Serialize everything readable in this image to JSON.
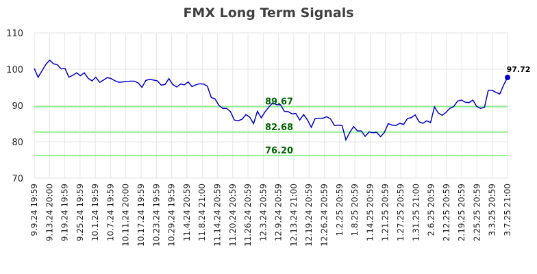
{
  "chart_data": {
    "type": "line",
    "title": "FMX Long Term Signals",
    "xlabel": "",
    "ylabel": "",
    "ylim": [
      70,
      110
    ],
    "yticks": [
      70,
      80,
      90,
      100,
      110
    ],
    "grid": true,
    "colors": {
      "line": "#0000cc",
      "signal": "#90ee90",
      "signal_text": "#006400",
      "grid": "#e6e6e6"
    },
    "x_tick_labels": [
      "9.9.24 19:59",
      "9.13.24 20:00",
      "9.19.24 19:59",
      "9.25.24 19:59",
      "10.1.24 19:59",
      "10.7.24 19:59",
      "10.11.24 20:00",
      "10.17.24 19:59",
      "10.23.24 19:59",
      "10.29.24 19:59",
      "11.4.24 20:59",
      "11.8.24 21:00",
      "11.14.24 20:59",
      "11.20.24 20:59",
      "11.26.24 20:59",
      "12.3.24 20:59",
      "12.9.24 20:59",
      "12.13.24 21:00",
      "12.19.24 20:59",
      "12.26.24 20:59",
      "1.2.25 20:59",
      "1.8.25 20:59",
      "1.14.25 20:59",
      "1.21.25 20:59",
      "1.27.25 20:59",
      "1.31.25 21:00",
      "2.6.25 20:59",
      "2.12.25 20:59",
      "2.19.25 20:59",
      "2.25.25 20:59",
      "3.3.25 20:59",
      "3.7.25 21:00"
    ],
    "signals": [
      {
        "label": "89.67",
        "value": 89.67
      },
      {
        "label": "82.68",
        "value": 82.68
      },
      {
        "label": "76.20",
        "value": 76.2
      }
    ],
    "last_value_label": "97.72",
    "series": [
      {
        "values": [
          100.2,
          97.8,
          99.5,
          101.3,
          102.5,
          101.5,
          101.2,
          100.1,
          100.2,
          97.8,
          98.3,
          99.0,
          98.2,
          99.0,
          97.5,
          96.8,
          97.8,
          96.4,
          97.0,
          97.7,
          97.4,
          96.8,
          96.4,
          96.5,
          96.6,
          96.7,
          96.7,
          96.2,
          95.0,
          96.9,
          97.2,
          97.0,
          96.8,
          95.6,
          95.8,
          97.4,
          95.8,
          95.1,
          95.9,
          95.7,
          96.5,
          95.2,
          95.7,
          96.0,
          95.9,
          95.3,
          92.2,
          91.8,
          90.0,
          89.2,
          89.2,
          88.3,
          86.0,
          85.8,
          86.2,
          87.5,
          86.8,
          85.0,
          88.4,
          86.6,
          88.3,
          89.6,
          90.8,
          90.2,
          90.2,
          88.4,
          88.3,
          87.7,
          87.8,
          86.0,
          87.5,
          86.0,
          84.0,
          86.4,
          86.5,
          86.5,
          86.9,
          86.3,
          84.5,
          84.6,
          84.5,
          80.5,
          82.6,
          84.2,
          83.0,
          83.0,
          81.5,
          82.7,
          82.5,
          82.6,
          81.4,
          82.6,
          85.0,
          84.6,
          84.5,
          85.1,
          84.8,
          86.4,
          86.7,
          87.4,
          85.5,
          85.1,
          85.8,
          85.3,
          89.6,
          87.9,
          87.3,
          88.1,
          89.2,
          89.7,
          91.2,
          91.5,
          90.9,
          90.8,
          91.5,
          89.7,
          89.2,
          89.5,
          94.2,
          94.2,
          93.6,
          93.2,
          95.7,
          97.72
        ]
      }
    ]
  }
}
